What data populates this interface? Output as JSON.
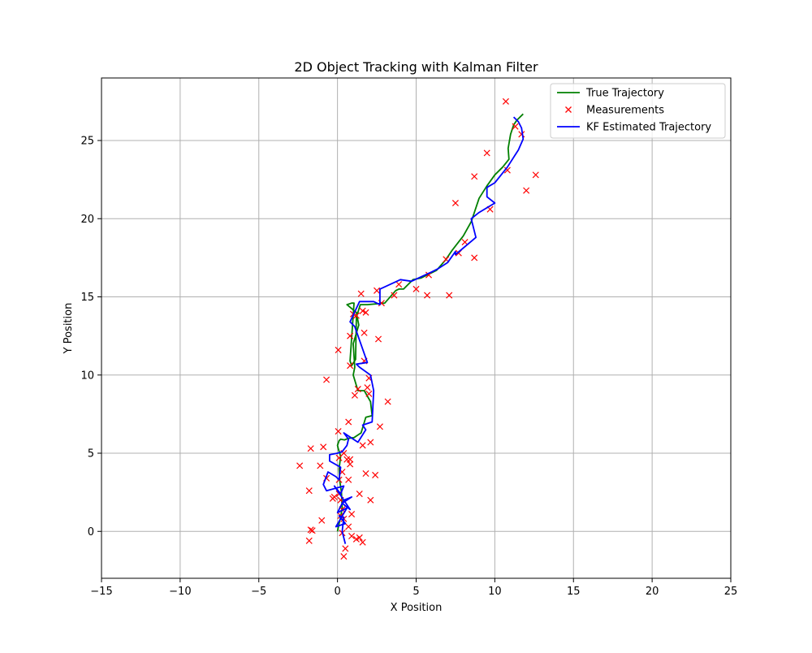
{
  "chart_data": {
    "type": "line",
    "title": "2D Object Tracking with Kalman Filter",
    "xlabel": "X Position",
    "ylabel": "Y Position",
    "xlim": [
      -15,
      25
    ],
    "ylim": [
      -3,
      29
    ],
    "x_ticks": [
      -15,
      -10,
      -5,
      0,
      5,
      10,
      15,
      20,
      25
    ],
    "y_ticks": [
      0,
      5,
      10,
      15,
      20,
      25
    ],
    "x_tick_labels": [
      "−15",
      "−10",
      "−5",
      "0",
      "5",
      "10",
      "15",
      "20",
      "25"
    ],
    "y_tick_labels": [
      "0",
      "5",
      "10",
      "15",
      "20",
      "25"
    ],
    "grid": true,
    "legend_position": "upper right",
    "colors": {
      "true_trajectory": "#008000",
      "measurements": "#ff0000",
      "kf_estimated": "#0000ff",
      "grid": "#b0b0b0"
    },
    "series": [
      {
        "name": "True Trajectory",
        "kind": "line",
        "x": [
          0.0,
          0.1,
          0.2,
          0.3,
          0.25,
          0.15,
          0.1,
          0.2,
          0.05,
          0.0,
          0.1,
          0.2,
          0.45,
          0.7,
          1.05,
          1.5,
          1.8,
          2.2,
          2.1,
          1.7,
          1.3,
          1.0,
          1.1,
          1.0,
          1.35,
          1.2,
          0.6,
          0.9,
          1.05,
          0.8,
          0.9,
          1.15,
          1.2,
          1.45,
          1.9,
          3.0,
          3.7,
          3.9,
          4.2,
          4.8,
          5.3,
          6.3,
          6.9,
          7.3,
          8.0,
          8.5,
          9.0,
          9.5,
          10.0,
          10.5,
          10.9,
          10.85,
          11.0,
          11.2,
          11.4,
          11.8
        ],
        "y": [
          0.0,
          0.5,
          0.9,
          1.5,
          2.5,
          3.2,
          4.0,
          4.8,
          5.3,
          5.5,
          5.8,
          5.9,
          5.85,
          5.95,
          6.0,
          6.3,
          7.3,
          7.4,
          8.3,
          9.0,
          9.0,
          10.0,
          10.5,
          12.0,
          13.2,
          14.0,
          14.5,
          14.6,
          14.6,
          10.9,
          10.6,
          11.0,
          13.7,
          14.5,
          14.5,
          14.6,
          15.4,
          15.5,
          15.5,
          16.1,
          16.2,
          16.7,
          17.4,
          18.0,
          18.9,
          19.8,
          21.3,
          22.1,
          22.8,
          23.3,
          23.8,
          24.5,
          25.4,
          26.0,
          26.3,
          26.7
        ]
      },
      {
        "name": "Measurements",
        "kind": "scatter",
        "x": [
          10.7,
          11.3,
          11.7,
          9.5,
          10.8,
          12.6,
          12.0,
          8.7,
          7.5,
          9.7,
          8.1,
          7.7,
          6.9,
          8.7,
          5.8,
          5.0,
          5.7,
          7.1,
          3.9,
          2.5,
          1.5,
          3.6,
          2.8,
          1.0,
          1.6,
          1.8,
          1.2,
          0.8,
          1.7,
          2.6,
          0.05,
          1.7,
          0.8,
          -0.7,
          2.0,
          1.9,
          2.0,
          1.3,
          1.1,
          3.2,
          0.7,
          2.7,
          0.05,
          2.1,
          1.6,
          -0.9,
          -1.7,
          0.4,
          0.1,
          0.6,
          0.8,
          -2.4,
          -1.1,
          0.3,
          0.8,
          1.8,
          2.4,
          -0.7,
          0.1,
          0.7,
          -1.8,
          0.1,
          1.4,
          -0.2,
          -0.3,
          0.2,
          2.1,
          0.3,
          0.9,
          0.2,
          -1.0,
          0.4,
          0.7,
          -1.7,
          -1.6,
          0.3,
          0.9,
          1.2,
          1.4,
          1.6,
          0.5,
          -1.8,
          0.4
        ],
        "y": [
          27.5,
          25.9,
          25.4,
          24.2,
          23.1,
          22.8,
          21.8,
          22.7,
          21.0,
          20.6,
          18.5,
          17.8,
          17.4,
          17.5,
          16.4,
          15.5,
          15.1,
          15.1,
          15.8,
          15.4,
          15.2,
          15.1,
          14.6,
          13.9,
          14.1,
          14.0,
          13.8,
          12.5,
          12.7,
          12.3,
          11.6,
          10.9,
          10.6,
          9.7,
          9.8,
          9.2,
          8.8,
          9.1,
          8.7,
          8.3,
          7.0,
          6.7,
          6.4,
          5.7,
          5.5,
          5.4,
          5.3,
          5.0,
          4.7,
          4.6,
          4.3,
          4.2,
          4.2,
          3.8,
          4.6,
          3.7,
          3.6,
          3.4,
          3.3,
          3.3,
          2.6,
          2.4,
          2.4,
          2.2,
          2.1,
          2.0,
          2.0,
          1.4,
          1.1,
          1.0,
          0.7,
          0.8,
          0.3,
          0.1,
          0.05,
          -0.1,
          -0.3,
          -0.5,
          -0.4,
          -0.7,
          -1.1,
          -0.6,
          -1.6
        ]
      },
      {
        "name": "KF Estimated Trajectory",
        "kind": "line",
        "x": [
          0.5,
          0.3,
          0.4,
          0.1,
          0.5,
          -0.1,
          0.6,
          0.0,
          0.4,
          0.9,
          0.3,
          0.8,
          -0.2,
          0.2,
          0.4,
          -0.7,
          -0.9,
          -0.6,
          -0.1,
          0.1,
          0.2,
          -0.5,
          -0.5,
          0.0,
          0.3,
          0.6,
          0.7,
          0.4,
          1.3,
          1.8,
          1.6,
          2.2,
          2.3,
          2.1,
          1.4,
          1.2,
          1.9,
          1.1,
          0.8,
          1.4,
          1.7,
          2.3,
          2.7,
          2.7,
          4.0,
          4.7,
          6.0,
          6.4,
          7.0,
          7.5,
          7.5,
          8.8,
          8.5,
          9.0,
          10.0,
          9.5,
          9.5,
          10.0,
          10.8,
          11.5,
          11.8,
          11.7,
          11.5,
          11.2
        ],
        "y": [
          -0.8,
          0.0,
          0.9,
          1.0,
          0.5,
          0.3,
          1.5,
          1.2,
          2.0,
          2.2,
          1.8,
          1.4,
          2.9,
          2.4,
          2.9,
          2.6,
          3.0,
          3.8,
          3.5,
          3.3,
          4.1,
          4.5,
          4.9,
          5.0,
          5.1,
          5.5,
          5.9,
          6.3,
          5.7,
          6.5,
          6.8,
          7.0,
          9.0,
          10.0,
          10.5,
          10.7,
          10.8,
          13.1,
          13.4,
          14.7,
          14.7,
          14.7,
          14.5,
          15.5,
          16.1,
          16.0,
          16.6,
          16.8,
          17.2,
          17.9,
          17.7,
          18.8,
          20.0,
          20.4,
          21.0,
          21.4,
          22.0,
          22.3,
          23.3,
          24.4,
          25.1,
          25.8,
          26.2,
          26.5
        ]
      }
    ]
  }
}
